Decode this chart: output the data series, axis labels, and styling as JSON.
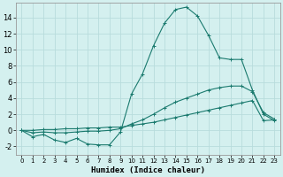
{
  "xlabel": "Humidex (Indice chaleur)",
  "background_color": "#d4f0ef",
  "grid_color": "#b8dcdc",
  "line_color": "#1a7a6e",
  "xlim": [
    -0.5,
    23.5
  ],
  "ylim": [
    -3.0,
    15.8
  ],
  "xticks": [
    0,
    1,
    2,
    3,
    4,
    5,
    6,
    7,
    8,
    9,
    10,
    11,
    12,
    13,
    14,
    15,
    16,
    17,
    18,
    19,
    20,
    21,
    22,
    23
  ],
  "yticks": [
    -2,
    0,
    2,
    4,
    6,
    8,
    10,
    12,
    14
  ],
  "line1_x": [
    0,
    1,
    2,
    3,
    4,
    5,
    6,
    7,
    8,
    9,
    10,
    11,
    12,
    13,
    14,
    15,
    16,
    17,
    18,
    19,
    20,
    21,
    22,
    23
  ],
  "line1_y": [
    0.0,
    -0.8,
    -0.5,
    -1.2,
    -1.5,
    -1.0,
    -1.7,
    -1.8,
    -1.8,
    -0.2,
    4.5,
    7.0,
    10.5,
    13.3,
    15.0,
    15.3,
    14.2,
    11.8,
    9.0,
    8.8,
    8.8,
    5.0,
    2.0,
    1.2
  ],
  "line2_x": [
    0,
    1,
    2,
    3,
    4,
    5,
    6,
    7,
    8,
    9,
    10,
    11,
    12,
    13,
    14,
    15,
    16,
    17,
    18,
    19,
    20,
    21,
    22,
    23
  ],
  "line2_y": [
    0.0,
    -0.3,
    -0.2,
    -0.3,
    -0.3,
    -0.2,
    -0.1,
    -0.1,
    0.0,
    0.2,
    0.8,
    1.3,
    2.0,
    2.8,
    3.5,
    4.0,
    4.5,
    5.0,
    5.3,
    5.5,
    5.5,
    4.8,
    2.2,
    1.4
  ],
  "line3_x": [
    0,
    1,
    2,
    3,
    4,
    5,
    6,
    7,
    8,
    9,
    10,
    11,
    12,
    13,
    14,
    15,
    16,
    17,
    18,
    19,
    20,
    21,
    22,
    23
  ],
  "line3_y": [
    0.0,
    0.0,
    0.1,
    0.1,
    0.2,
    0.2,
    0.3,
    0.3,
    0.4,
    0.4,
    0.6,
    0.8,
    1.0,
    1.3,
    1.6,
    1.9,
    2.2,
    2.5,
    2.8,
    3.1,
    3.4,
    3.7,
    1.2,
    1.3
  ]
}
